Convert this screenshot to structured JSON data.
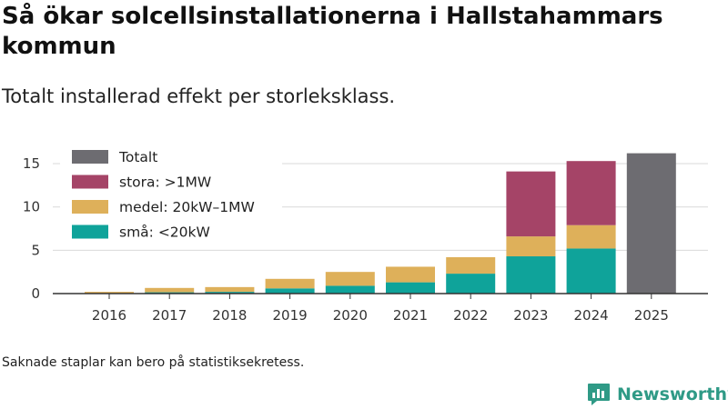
{
  "header": {
    "title": "Så ökar solcellsinstallationerna i Hallstahammars kommun",
    "subtitle": "Totalt installerad effekt per storleksklass."
  },
  "footer": {
    "note": "Saknade staplar kan bero på statistiksekretess.",
    "brand": "Newsworthy",
    "brand_color": "#2f9a86"
  },
  "chart_data": {
    "type": "bar",
    "stacked": true,
    "title": "Så ökar solcellsinstallationerna i Hallstahammars kommun",
    "subtitle": "Totalt installerad effekt per storleksklass.",
    "xlabel": "",
    "ylabel": "",
    "categories": [
      "2016",
      "2017",
      "2018",
      "2019",
      "2020",
      "2021",
      "2022",
      "2023",
      "2024",
      "2025"
    ],
    "ylim": [
      0,
      17
    ],
    "yticks": [
      0,
      5,
      10,
      15
    ],
    "grid": true,
    "legend_position": "top-left",
    "series": [
      {
        "name": "små: <20kW",
        "color": "#0fa39a",
        "values": [
          0.05,
          0.15,
          0.2,
          0.6,
          0.9,
          1.3,
          2.3,
          4.3,
          5.2,
          null
        ]
      },
      {
        "name": "medel: 20kW–1MW",
        "color": "#deb05a",
        "values": [
          0.15,
          0.5,
          0.55,
          1.1,
          1.6,
          1.8,
          1.9,
          2.3,
          2.7,
          null
        ]
      },
      {
        "name": "stora: >1MW",
        "color": "#a54467",
        "values": [
          null,
          null,
          null,
          null,
          null,
          null,
          null,
          7.5,
          7.4,
          null
        ]
      },
      {
        "name": "Totalt",
        "color": "#6d6c71",
        "values": [
          null,
          null,
          null,
          null,
          null,
          null,
          null,
          null,
          null,
          16.2
        ]
      }
    ],
    "legend_order": [
      "Totalt",
      "stora: >1MW",
      "medel: 20kW–1MW",
      "små: <20kW"
    ]
  }
}
